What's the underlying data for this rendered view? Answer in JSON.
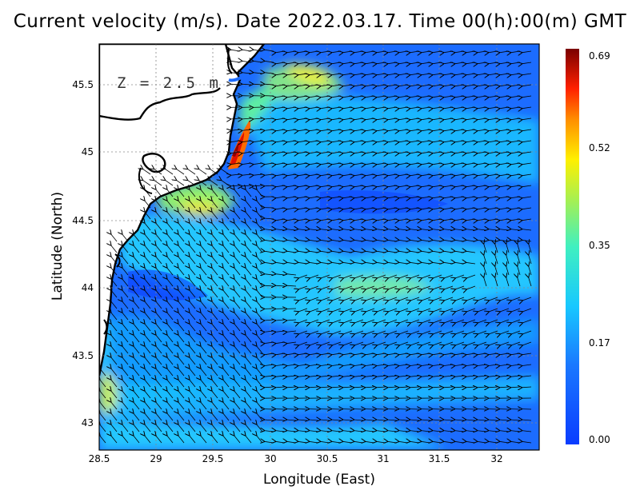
{
  "title": "Current velocity (m/s). Date 2022.03.17. Time 00(h):00(m) GMT",
  "depth_label": "Z = 2.5 m",
  "xlabel": "Longitude (East)",
  "ylabel": "Latitude (North)",
  "x_ticks": [
    "28.5",
    "29",
    "29.5",
    "30",
    "30.5",
    "31",
    "31.5",
    "32"
  ],
  "y_ticks": [
    "43",
    "43.5",
    "44",
    "44.5",
    "45",
    "45.5"
  ],
  "colorbar_ticks": [
    "0.69",
    "0.52",
    "0.35",
    "0.17",
    "0.00"
  ],
  "colors": {
    "low": "#0a3cff",
    "mid": "#18e3ff",
    "high": "#ffe600",
    "max": "#8a0000",
    "land": "#ffffff",
    "coast": "#000000"
  },
  "chart_data": {
    "type": "heatmap",
    "title": "Current velocity (m/s). Date 2022.03.17. Time 00(h):00(m) GMT",
    "xlabel": "Longitude (East)",
    "ylabel": "Latitude (North)",
    "xlim": [
      28.5,
      32.4
    ],
    "ylim": [
      42.8,
      45.8
    ],
    "colorbar_range": [
      0.0,
      0.69
    ],
    "colorbar_ticks": [
      0.0,
      0.17,
      0.35,
      0.52,
      0.69
    ],
    "grid": true
  }
}
